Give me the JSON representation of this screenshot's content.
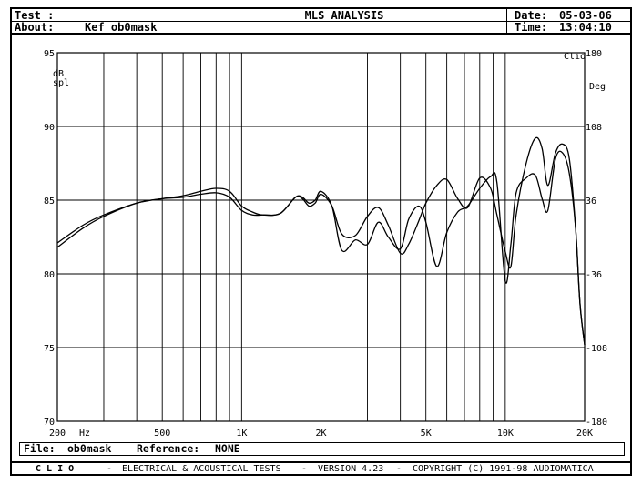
{
  "header": {
    "test_label": "Test :",
    "title": "MLS ANALYSIS",
    "about_label": "About:",
    "about_value": "Kef ob0mask",
    "date_label": "Date:",
    "date_value": "05-03-06",
    "time_label": "Time:",
    "time_value": "13:04:10"
  },
  "footer": {
    "file_label": "File:",
    "file_value": "ob0mask",
    "reference_label": "Reference:",
    "reference_value": "NONE"
  },
  "credits": {
    "brand": "C L I O",
    "sep1": "-",
    "tests": "ELECTRICAL & ACOUSTICAL TESTS",
    "sep2": "-",
    "version": "VERSION 4.23",
    "sep3": "-",
    "copyright": "COPYRIGHT (C) 1991-98 AUDIOMATICA"
  },
  "chart_data": {
    "type": "line",
    "xlabel": "Hz",
    "ylabel": "dB spl",
    "y2label": "Deg",
    "corner_label": "Clio",
    "xscale": "log",
    "xlim": [
      200,
      20000
    ],
    "ylim": [
      70,
      95
    ],
    "y2lim": [
      -180,
      180
    ],
    "grid": true,
    "x_ticks": [
      {
        "value": 200,
        "label": "200"
      },
      {
        "value": 500,
        "label": "500"
      },
      {
        "value": 1000,
        "label": "1K"
      },
      {
        "value": 2000,
        "label": "2K"
      },
      {
        "value": 5000,
        "label": "5K"
      },
      {
        "value": 10000,
        "label": "10K"
      },
      {
        "value": 20000,
        "label": "20K"
      }
    ],
    "x_grid": [
      300,
      400,
      500,
      600,
      700,
      800,
      900,
      1000,
      2000,
      3000,
      4000,
      5000,
      6000,
      7000,
      8000,
      9000,
      10000
    ],
    "y_ticks": [
      {
        "value": 95,
        "label": "95"
      },
      {
        "value": 90,
        "label": "90"
      },
      {
        "value": 85,
        "label": "85"
      },
      {
        "value": 80,
        "label": "80"
      },
      {
        "value": 75,
        "label": "75"
      },
      {
        "value": 70,
        "label": "70"
      }
    ],
    "y2_ticks": [
      {
        "value": 180,
        "label": "180"
      },
      {
        "value": 108,
        "label": "108"
      },
      {
        "value": 36,
        "label": "36"
      },
      {
        "value": -36,
        "label": "-36"
      },
      {
        "value": -108,
        "label": "-108"
      },
      {
        "value": -180,
        "label": "-180"
      }
    ],
    "series": [
      {
        "color": "#000000",
        "x": [
          200,
          250,
          300,
          400,
          500,
          600,
          700,
          800,
          900,
          1000,
          1100,
          1200,
          1400,
          1600,
          1700,
          1800,
          1900,
          2000,
          2200,
          2400,
          2700,
          3000,
          3300,
          3600,
          4000,
          4300,
          4700,
          5000,
          5500,
          6000,
          6600,
          7200,
          8000,
          8800,
          9300,
          10000,
          10500,
          11000,
          12000,
          13000,
          13800,
          14500,
          15500,
          16500,
          17500,
          18500,
          19200,
          20000
        ],
        "y": [
          82.1,
          83.3,
          84.0,
          84.8,
          85.1,
          85.3,
          85.6,
          85.8,
          85.6,
          84.6,
          84.2,
          84.0,
          84.1,
          85.2,
          85.1,
          84.6,
          84.8,
          85.4,
          84.6,
          82.7,
          82.6,
          83.9,
          84.5,
          83.3,
          81.4,
          82.0,
          83.6,
          84.8,
          86.0,
          86.4,
          85.1,
          84.5,
          86.5,
          85.8,
          84.0,
          81.5,
          80.5,
          84.0,
          87.5,
          89.2,
          88.5,
          86.0,
          88.2,
          88.8,
          87.8,
          83.0,
          78.0,
          75.2
        ]
      },
      {
        "color": "#000000",
        "x": [
          200,
          250,
          300,
          400,
          500,
          600,
          700,
          800,
          900,
          1000,
          1100,
          1200,
          1400,
          1600,
          1700,
          1800,
          1900,
          2000,
          2200,
          2400,
          2700,
          3000,
          3300,
          3600,
          4000,
          4300,
          4700,
          5000,
          5500,
          6000,
          6600,
          7200,
          8000,
          8800,
          9300,
          10000,
          10500,
          11000,
          12000,
          13000,
          13800,
          14500,
          15500,
          16500,
          17500,
          18500,
          19200,
          20000
        ],
        "y": [
          81.8,
          83.1,
          83.9,
          84.8,
          85.1,
          85.2,
          85.4,
          85.5,
          85.2,
          84.3,
          84.0,
          84.0,
          84.1,
          85.2,
          85.2,
          84.8,
          85.0,
          85.6,
          84.6,
          81.6,
          82.3,
          82.0,
          83.5,
          82.5,
          81.7,
          83.7,
          84.6,
          83.5,
          80.5,
          82.8,
          84.2,
          84.6,
          85.8,
          86.6,
          86.2,
          79.5,
          82.0,
          85.5,
          86.5,
          86.7,
          85.1,
          84.3,
          87.8,
          88.2,
          86.8,
          83.0,
          78.0,
          75.2
        ]
      }
    ]
  }
}
